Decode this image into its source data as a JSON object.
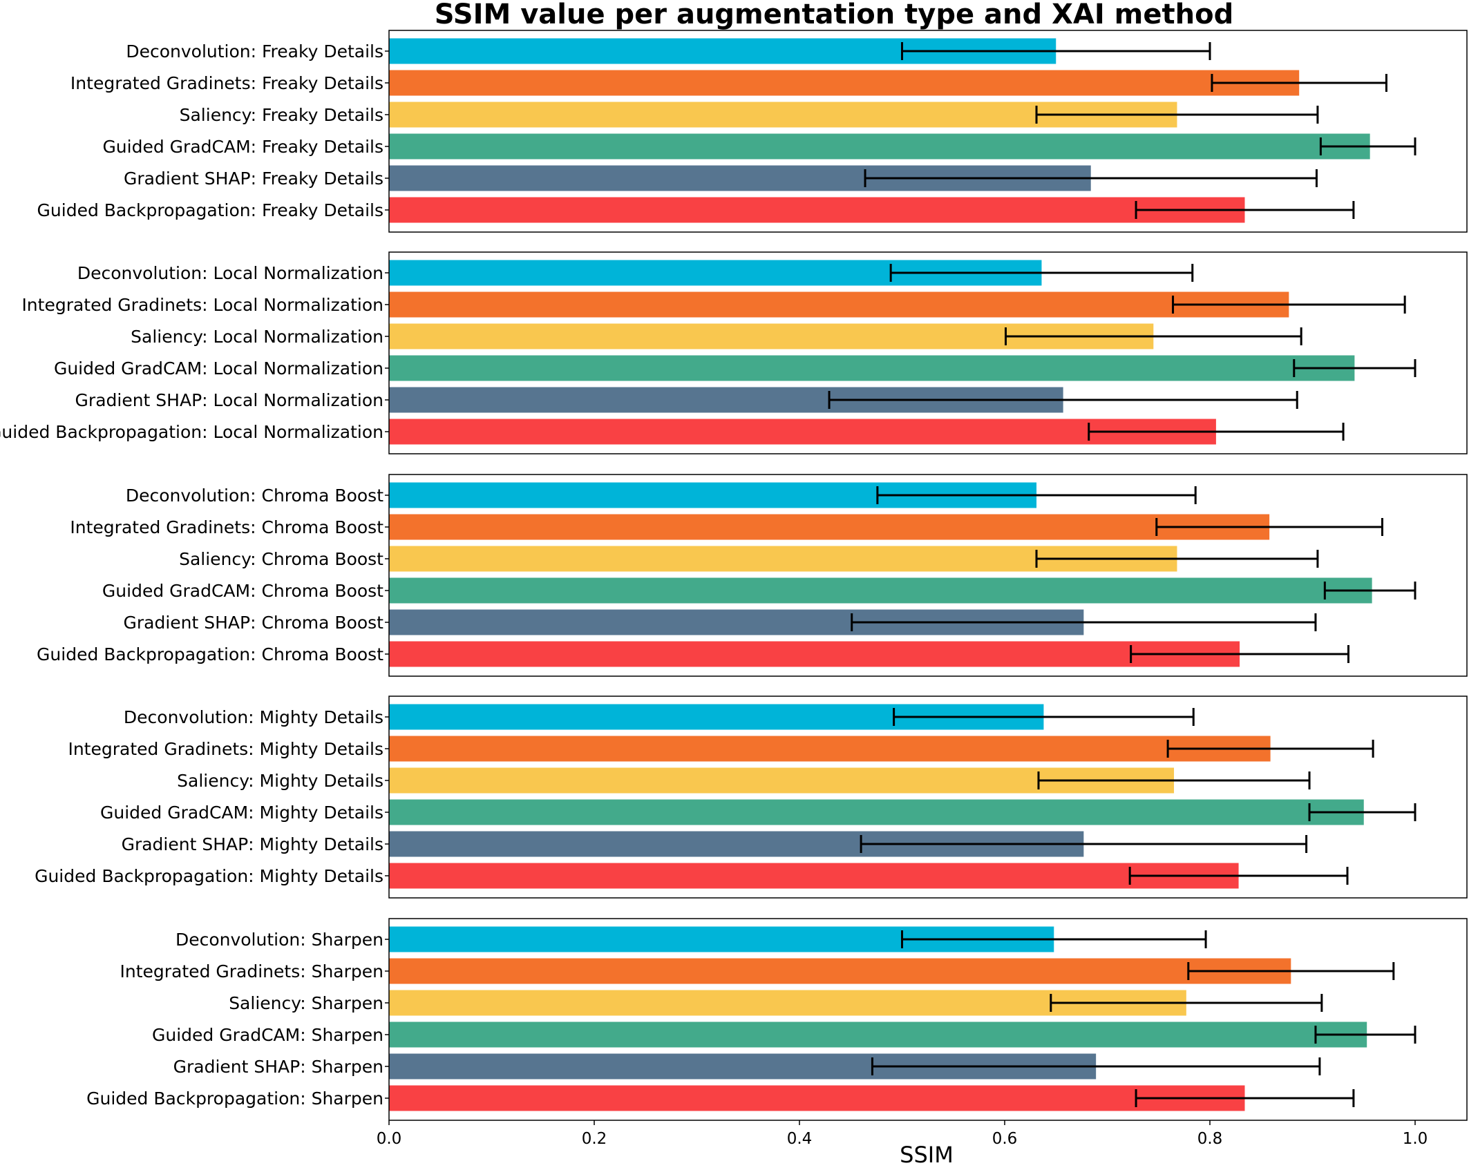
{
  "chart_data": {
    "type": "bar",
    "orientation": "horizontal",
    "title": "SSIM value per augmentation type and XAI method",
    "xlabel": "SSIM",
    "xlim": [
      0.0,
      1.05
    ],
    "xticks": [
      "0.0",
      "0.2",
      "0.4",
      "0.6",
      "0.8",
      "1.0"
    ],
    "xtick_values": [
      0.0,
      0.2,
      0.4,
      0.6,
      0.8,
      1.0
    ],
    "grid": false,
    "colors": {
      "Deconvolution": "#00b4d8",
      "Integrated Gradinets": "#f3722c",
      "Saliency": "#f9c74f",
      "Guided GradCAM": "#43aa8b",
      "Gradient SHAP": "#577590",
      "Guided Backpropagation": "#f94144"
    },
    "panels": [
      {
        "augmentation": "Freaky Details",
        "bars": [
          {
            "label": "Deconvolution: Freaky Details",
            "method": "Deconvolution",
            "value": 0.65,
            "err": 0.15
          },
          {
            "label": "Integrated Gradinets: Freaky Details",
            "method": "Integrated Gradinets",
            "value": 0.887,
            "err": 0.085
          },
          {
            "label": "Saliency: Freaky Details",
            "method": "Saliency",
            "value": 0.768,
            "err": 0.137
          },
          {
            "label": "Guided GradCAM: Freaky Details",
            "method": "Guided GradCAM",
            "value": 0.956,
            "err": 0.048
          },
          {
            "label": "Gradient SHAP: Freaky Details",
            "method": "Gradient SHAP",
            "value": 0.684,
            "err": 0.22
          },
          {
            "label": "Guided Backpropagation: Freaky Details",
            "method": "Guided Backpropagation",
            "value": 0.834,
            "err": 0.106
          }
        ]
      },
      {
        "augmentation": "Local Normalization",
        "bars": [
          {
            "label": "Deconvolution: Local Normalization",
            "method": "Deconvolution",
            "value": 0.636,
            "err": 0.147
          },
          {
            "label": "Integrated Gradinets: Local Normalization",
            "method": "Integrated Gradinets",
            "value": 0.877,
            "err": 0.113
          },
          {
            "label": "Saliency: Local Normalization",
            "method": "Saliency",
            "value": 0.745,
            "err": 0.144
          },
          {
            "label": "Guided GradCAM: Local Normalization",
            "method": "Guided GradCAM",
            "value": 0.941,
            "err": 0.059
          },
          {
            "label": "Gradient SHAP: Local Normalization",
            "method": "Gradient SHAP",
            "value": 0.657,
            "err": 0.228
          },
          {
            "label": "Guided Backpropagation: Local Normalization",
            "method": "Guided Backpropagation",
            "value": 0.806,
            "err": 0.124
          }
        ]
      },
      {
        "augmentation": "Chroma Boost",
        "bars": [
          {
            "label": "Deconvolution: Chroma Boost",
            "method": "Deconvolution",
            "value": 0.631,
            "err": 0.155
          },
          {
            "label": "Integrated Gradinets: Chroma Boost",
            "method": "Integrated Gradinets",
            "value": 0.858,
            "err": 0.11
          },
          {
            "label": "Saliency: Chroma Boost",
            "method": "Saliency",
            "value": 0.768,
            "err": 0.137
          },
          {
            "label": "Guided GradCAM: Chroma Boost",
            "method": "Guided GradCAM",
            "value": 0.958,
            "err": 0.046
          },
          {
            "label": "Gradient SHAP: Chroma Boost",
            "method": "Gradient SHAP",
            "value": 0.677,
            "err": 0.226
          },
          {
            "label": "Guided Backpropagation: Chroma Boost",
            "method": "Guided Backpropagation",
            "value": 0.829,
            "err": 0.106
          }
        ]
      },
      {
        "augmentation": "Mighty Details",
        "bars": [
          {
            "label": "Deconvolution: Mighty Details",
            "method": "Deconvolution",
            "value": 0.638,
            "err": 0.146
          },
          {
            "label": "Integrated Gradinets: Mighty Details",
            "method": "Integrated Gradinets",
            "value": 0.859,
            "err": 0.1
          },
          {
            "label": "Saliency: Mighty Details",
            "method": "Saliency",
            "value": 0.765,
            "err": 0.132
          },
          {
            "label": "Guided GradCAM: Mighty Details",
            "method": "Guided GradCAM",
            "value": 0.95,
            "err": 0.053
          },
          {
            "label": "Gradient SHAP: Mighty Details",
            "method": "Gradient SHAP",
            "value": 0.677,
            "err": 0.217
          },
          {
            "label": "Guided Backpropagation: Mighty Details",
            "method": "Guided Backpropagation",
            "value": 0.828,
            "err": 0.106
          }
        ]
      },
      {
        "augmentation": "Sharpen",
        "bars": [
          {
            "label": "Deconvolution: Sharpen",
            "method": "Deconvolution",
            "value": 0.648,
            "err": 0.148
          },
          {
            "label": "Integrated Gradinets: Sharpen",
            "method": "Integrated Gradinets",
            "value": 0.879,
            "err": 0.1
          },
          {
            "label": "Saliency: Sharpen",
            "method": "Saliency",
            "value": 0.777,
            "err": 0.132
          },
          {
            "label": "Guided GradCAM: Sharpen",
            "method": "Guided GradCAM",
            "value": 0.953,
            "err": 0.05
          },
          {
            "label": "Gradient SHAP: Sharpen",
            "method": "Gradient SHAP",
            "value": 0.689,
            "err": 0.218
          },
          {
            "label": "Guided Backpropagation: Sharpen",
            "method": "Guided Backpropagation",
            "value": 0.834,
            "err": 0.106
          }
        ]
      }
    ]
  }
}
